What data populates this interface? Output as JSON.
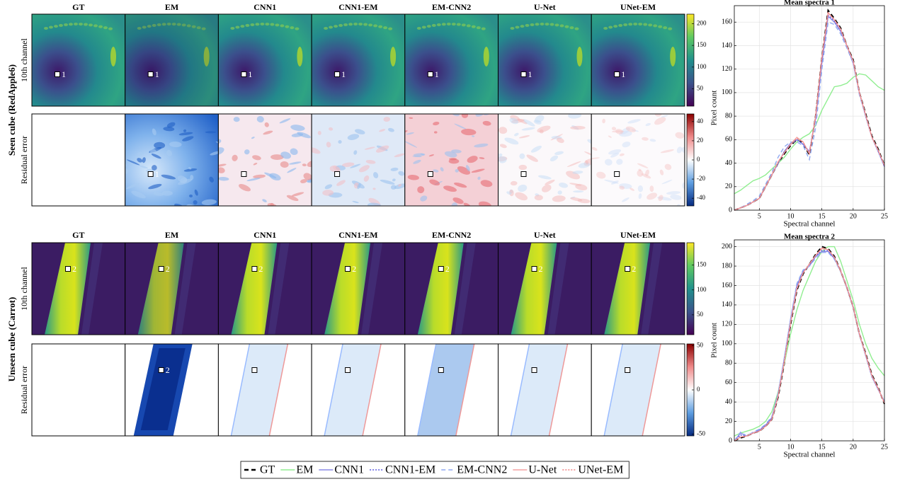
{
  "figure": {
    "columns": [
      "GT",
      "EM",
      "CNN1",
      "CNN1-EM",
      "EM-CNN2",
      "U-Net",
      "UNet-EM"
    ],
    "rows": [
      {
        "group": "Seen cube (RedApple6)",
        "labels": [
          "10th channel",
          "Residual error"
        ],
        "marker": "1",
        "colorbars": [
          {
            "lim": [
              10,
              222
            ],
            "ticks": [
              50,
              100,
              150,
              200
            ]
          },
          {
            "lim": [
              -48,
              48
            ],
            "ticks": [
              -40,
              -20,
              0,
              20,
              40
            ]
          }
        ]
      },
      {
        "group": "Unseen cube (Carrot)",
        "labels": [
          "10th channel",
          "Residual error"
        ],
        "marker": "2",
        "colorbars": [
          {
            "lim": [
              10,
              195
            ],
            "ticks": [
              50,
              100,
              150
            ]
          },
          {
            "lim": [
              -52,
              52
            ],
            "ticks": [
              -50,
              0,
              50
            ]
          }
        ]
      }
    ]
  },
  "chart_data": [
    {
      "type": "line",
      "title": "Mean spectra 1",
      "x_label": "Spectral channel",
      "y_label": "Pixel count",
      "grid": true,
      "x": [
        1,
        2,
        3,
        4,
        5,
        6,
        7,
        8,
        9,
        10,
        11,
        12,
        13,
        14,
        15,
        16,
        17,
        18,
        19,
        20,
        21,
        22,
        23,
        24,
        25
      ],
      "xlim": [
        1,
        25
      ],
      "xticks": [
        5,
        10,
        15,
        20,
        25
      ],
      "ylim": [
        0,
        174
      ],
      "yticks": [
        0,
        20,
        40,
        60,
        80,
        100,
        120,
        140,
        160
      ],
      "series": [
        {
          "name": "GT",
          "color": "#000000",
          "style": "dashed",
          "values": [
            0,
            2,
            4,
            7,
            10,
            20,
            30,
            40,
            48,
            55,
            60,
            57,
            47,
            80,
            130,
            170,
            163,
            155,
            140,
            128,
            100,
            82,
            63,
            52,
            38
          ]
        },
        {
          "name": "EM",
          "color": "#90ee90",
          "style": "solid",
          "values": [
            14,
            17,
            21,
            25,
            27,
            30,
            35,
            40,
            45,
            52,
            58,
            62,
            65,
            72,
            85,
            95,
            105,
            106,
            108,
            113,
            116,
            115,
            110,
            105,
            102
          ]
        },
        {
          "name": "CNN1",
          "color": "#8a8ae6",
          "style": "solid",
          "values": [
            0,
            2,
            4,
            7,
            10,
            20,
            30,
            40,
            50,
            57,
            60,
            56,
            50,
            78,
            125,
            165,
            160,
            152,
            140,
            125,
            100,
            80,
            62,
            50,
            37
          ]
        },
        {
          "name": "CNN1-EM",
          "color": "#5a5ae0",
          "style": "dotted",
          "values": [
            0,
            2,
            4,
            7,
            10,
            20,
            30,
            40,
            50,
            56,
            60,
            56,
            49,
            78,
            127,
            166,
            161,
            153,
            140,
            126,
            100,
            80,
            62,
            50,
            37
          ]
        },
        {
          "name": "EM-CNN2",
          "color": "#8fa8f0",
          "style": "dashed",
          "values": [
            0,
            2,
            5,
            8,
            12,
            22,
            32,
            45,
            54,
            58,
            58,
            55,
            43,
            70,
            120,
            160,
            158,
            150,
            138,
            125,
            98,
            80,
            62,
            50,
            37
          ]
        },
        {
          "name": "U-Net",
          "color": "#f4a0a0",
          "style": "solid",
          "values": [
            0,
            2,
            4,
            7,
            10,
            20,
            30,
            41,
            49,
            56,
            62,
            58,
            48,
            80,
            130,
            168,
            162,
            154,
            140,
            127,
            100,
            81,
            62,
            51,
            38
          ]
        },
        {
          "name": "UNet-EM",
          "color": "#f08080",
          "style": "dotted",
          "values": [
            0,
            2,
            4,
            7,
            10,
            20,
            30,
            41,
            49,
            56,
            61,
            58,
            48,
            80,
            129,
            168,
            162,
            154,
            140,
            127,
            100,
            81,
            62,
            51,
            38
          ]
        }
      ]
    },
    {
      "type": "line",
      "title": "Mean spectra 2",
      "x_label": "Spectral channel",
      "y_label": "Pixel count",
      "grid": true,
      "x": [
        1,
        2,
        3,
        4,
        5,
        6,
        7,
        8,
        9,
        10,
        11,
        12,
        13,
        14,
        15,
        16,
        17,
        18,
        19,
        20,
        21,
        22,
        23,
        24,
        25
      ],
      "xlim": [
        1,
        25
      ],
      "xticks": [
        5,
        10,
        15,
        20,
        25
      ],
      "ylim": [
        0,
        207
      ],
      "yticks": [
        0,
        20,
        40,
        60,
        80,
        100,
        120,
        140,
        160,
        180,
        200
      ],
      "series": [
        {
          "name": "GT",
          "color": "#000000",
          "style": "dashed",
          "values": [
            0,
            3,
            5,
            8,
            10,
            15,
            22,
            45,
            80,
            120,
            155,
            172,
            182,
            192,
            200,
            198,
            190,
            175,
            158,
            138,
            110,
            90,
            68,
            55,
            38
          ]
        },
        {
          "name": "EM",
          "color": "#90ee90",
          "style": "solid",
          "values": [
            5,
            8,
            10,
            12,
            15,
            20,
            30,
            50,
            80,
            110,
            135,
            155,
            170,
            185,
            195,
            200,
            200,
            185,
            165,
            145,
            120,
            100,
            85,
            75,
            67
          ]
        },
        {
          "name": "CNN1",
          "color": "#8a8ae6",
          "style": "solid",
          "values": [
            0,
            8,
            5,
            8,
            11,
            16,
            24,
            48,
            85,
            125,
            160,
            175,
            180,
            190,
            195,
            195,
            188,
            175,
            158,
            138,
            110,
            88,
            66,
            53,
            40
          ]
        },
        {
          "name": "CNN1-EM",
          "color": "#5a5ae0",
          "style": "dotted",
          "values": [
            0,
            6,
            5,
            8,
            11,
            16,
            23,
            47,
            84,
            124,
            158,
            174,
            181,
            190,
            196,
            196,
            188,
            175,
            158,
            138,
            110,
            88,
            66,
            53,
            40
          ]
        },
        {
          "name": "EM-CNN2",
          "color": "#8fa8f0",
          "style": "dashed",
          "values": [
            0,
            9,
            5,
            9,
            12,
            17,
            25,
            49,
            86,
            126,
            162,
            176,
            180,
            188,
            194,
            194,
            187,
            174,
            157,
            137,
            109,
            88,
            66,
            53,
            41
          ]
        },
        {
          "name": "U-Net",
          "color": "#f4a0a0",
          "style": "solid",
          "values": [
            0,
            4,
            5,
            8,
            10,
            15,
            22,
            46,
            82,
            122,
            157,
            173,
            182,
            191,
            198,
            197,
            189,
            175,
            158,
            138,
            110,
            89,
            67,
            54,
            39
          ]
        },
        {
          "name": "UNet-EM",
          "color": "#f08080",
          "style": "dotted",
          "values": [
            0,
            4,
            5,
            8,
            10,
            15,
            22,
            46,
            81,
            121,
            156,
            173,
            182,
            191,
            199,
            197,
            189,
            175,
            158,
            138,
            110,
            89,
            67,
            54,
            39
          ]
        }
      ]
    }
  ]
}
